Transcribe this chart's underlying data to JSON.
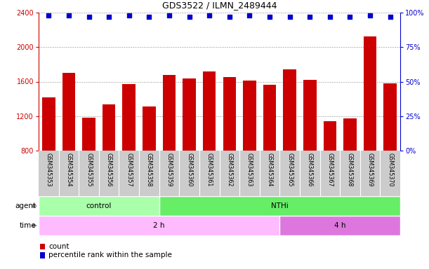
{
  "title": "GDS3522 / ILMN_2489444",
  "samples": [
    "GSM345353",
    "GSM345354",
    "GSM345355",
    "GSM345356",
    "GSM345357",
    "GSM345358",
    "GSM345359",
    "GSM345360",
    "GSM345361",
    "GSM345362",
    "GSM345363",
    "GSM345364",
    "GSM345365",
    "GSM345366",
    "GSM345367",
    "GSM345368",
    "GSM345369",
    "GSM345370"
  ],
  "counts": [
    1420,
    1700,
    1180,
    1340,
    1570,
    1310,
    1680,
    1640,
    1720,
    1650,
    1610,
    1565,
    1740,
    1620,
    1140,
    1170,
    2120,
    1580
  ],
  "percentile_ranks": [
    98,
    98,
    97,
    97,
    98,
    97,
    98,
    97,
    98,
    97,
    98,
    97,
    97,
    97,
    97,
    97,
    98,
    97
  ],
  "bar_color": "#cc0000",
  "dot_color": "#0000cc",
  "ylim_left": [
    800,
    2400
  ],
  "ylim_right": [
    0,
    100
  ],
  "yticks_left": [
    800,
    1200,
    1600,
    2000,
    2400
  ],
  "yticks_right": [
    0,
    25,
    50,
    75,
    100
  ],
  "agent_groups": [
    {
      "label": "control",
      "start": 0,
      "end": 6,
      "color": "#aaffaa"
    },
    {
      "label": "NTHi",
      "start": 6,
      "end": 18,
      "color": "#66ee66"
    }
  ],
  "time_groups": [
    {
      "label": "2 h",
      "start": 0,
      "end": 12,
      "color": "#ffbbff"
    },
    {
      "label": "4 h",
      "start": 12,
      "end": 18,
      "color": "#dd77dd"
    }
  ],
  "agent_label": "agent",
  "time_label": "time",
  "legend_count_label": "count",
  "legend_pct_label": "percentile rank within the sample",
  "xlabel_bg_color": "#cccccc",
  "grid_color": "#888888",
  "plot_bg": "#ffffff",
  "fig_bg": "#ffffff"
}
